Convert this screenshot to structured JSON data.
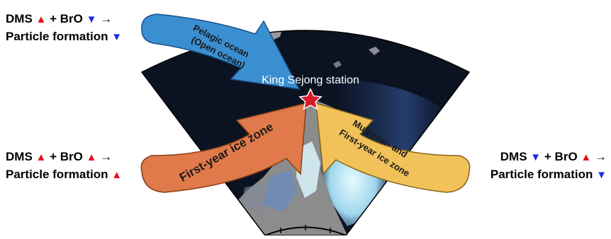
{
  "station": {
    "label": "King Sejong station"
  },
  "arrows": {
    "pelagic": {
      "line1": "Pelagic ocean",
      "line2": "(Open ocean)",
      "color": "#3a8fd0"
    },
    "first_year": {
      "label": "First-year ice zone",
      "color": "#e07a4a"
    },
    "multiyear": {
      "line1": "Multiyear- and",
      "line2": "First-year ice zone",
      "color": "#f2c25a"
    }
  },
  "legends": {
    "top_left": {
      "dms": "DMS",
      "plus": "+",
      "bro": "BrO",
      "arrow": "→",
      "particle": "Particle formation",
      "dms_trend": "up",
      "bro_trend": "down",
      "particle_trend": "down"
    },
    "middle_left": {
      "dms": "DMS",
      "plus": "+",
      "bro": "BrO",
      "arrow": "→",
      "particle": "Particle formation",
      "dms_trend": "up",
      "bro_trend": "up",
      "particle_trend": "up"
    },
    "right": {
      "dms": "DMS",
      "plus": "+",
      "bro": "BrO",
      "arrow": "→",
      "particle": "Particle formation",
      "dms_trend": "down",
      "bro_trend": "up",
      "particle_trend": "down"
    }
  },
  "colors": {
    "ocean": "#0b1322",
    "land": "#8c8c8c",
    "sea_ice": "#cfeef7",
    "increase": "#e8101a",
    "decrease": "#1a2ee0",
    "star": "#d81b2a"
  }
}
